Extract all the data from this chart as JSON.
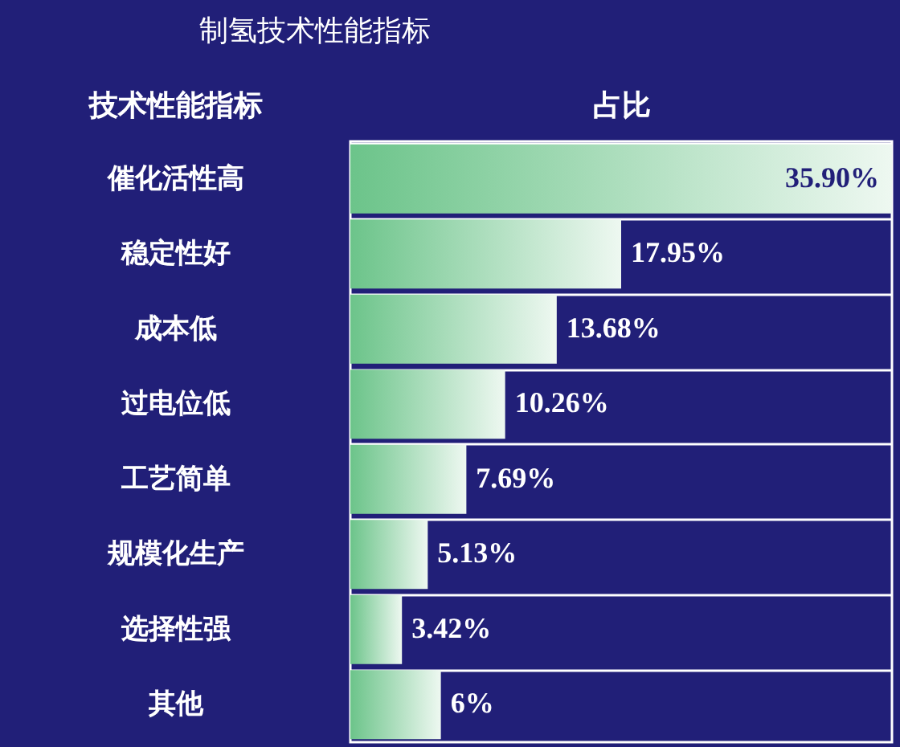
{
  "chart_data": {
    "type": "bar",
    "orientation": "horizontal",
    "title": "制氢技术性能指标",
    "ylabel": "技术性能指标",
    "xlabel": "占比",
    "categories": [
      "催化活性高",
      "稳定性好",
      "成本低",
      "过电位低",
      "工艺简单",
      "规模化生产",
      "选择性强",
      "其他"
    ],
    "values": [
      35.9,
      17.95,
      13.68,
      10.26,
      7.69,
      5.13,
      3.42,
      6
    ],
    "value_labels": [
      "35.90%",
      "17.95%",
      "13.68%",
      "10.26%",
      "7.69%",
      "5.13%",
      "3.42%",
      "6%"
    ],
    "color": "#6cc48a",
    "tick_labels": "y",
    "grid": "y"
  }
}
